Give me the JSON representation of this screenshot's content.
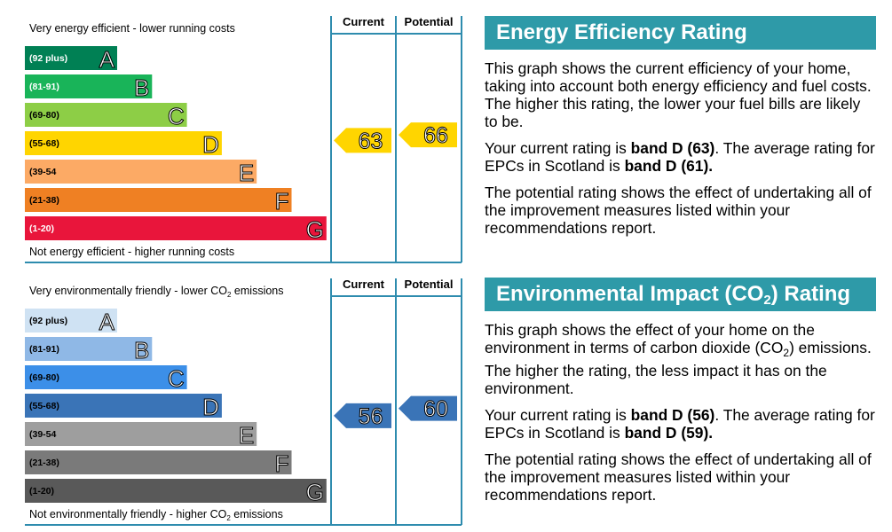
{
  "chart_data": [
    {
      "type": "bar",
      "top_label": "Very energy efficient - lower running costs",
      "bottom_label": "Not energy efficient - higher running costs",
      "columns": [
        "Current",
        "Potential"
      ],
      "bands": [
        {
          "letter": "A",
          "range": "(92 plus)",
          "color": "#008054",
          "text_color": "#ffffff"
        },
        {
          "letter": "B",
          "range": "(81-91)",
          "color": "#19b459",
          "text_color": "#ffffff"
        },
        {
          "letter": "C",
          "range": "(69-80)",
          "color": "#8dce46",
          "text_color": "#000000"
        },
        {
          "letter": "D",
          "range": "(55-68)",
          "color": "#ffd500",
          "text_color": "#000000"
        },
        {
          "letter": "E",
          "range": "(39-54",
          "color": "#fcaa65",
          "text_color": "#000000"
        },
        {
          "letter": "F",
          "range": "(21-38)",
          "color": "#ef8023",
          "text_color": "#000000"
        },
        {
          "letter": "G",
          "range": "(1-20)",
          "color": "#e9153b",
          "text_color": "#ffffff"
        }
      ],
      "current": {
        "value": 63,
        "color": "#ffd500"
      },
      "potential": {
        "value": 66,
        "color": "#ffd500"
      }
    },
    {
      "type": "bar",
      "top_label_pre": "Very environmentally friendly - lower CO",
      "top_label_sub": "2",
      "top_label_post": " emissions",
      "bottom_label_pre": "Not environmentally friendly - higher CO",
      "bottom_label_sub": "2",
      "bottom_label_post": " emissions",
      "columns": [
        "Current",
        "Potential"
      ],
      "bands": [
        {
          "letter": "A",
          "range": "(92 plus)",
          "color": "#cfe2f3",
          "text_color": "#000000"
        },
        {
          "letter": "B",
          "range": "(81-91)",
          "color": "#8fb8e6",
          "text_color": "#000000"
        },
        {
          "letter": "C",
          "range": "(69-80)",
          "color": "#3c8fe8",
          "text_color": "#000000"
        },
        {
          "letter": "D",
          "range": "(55-68)",
          "color": "#3a74b7",
          "text_color": "#000000"
        },
        {
          "letter": "E",
          "range": "(39-54",
          "color": "#9e9e9e",
          "text_color": "#000000"
        },
        {
          "letter": "F",
          "range": "(21-38)",
          "color": "#7a7a7a",
          "text_color": "#000000"
        },
        {
          "letter": "G",
          "range": "(1-20)",
          "color": "#595959",
          "text_color": "#000000"
        }
      ],
      "current": {
        "value": 56,
        "color": "#3a74b7"
      },
      "potential": {
        "value": 60,
        "color": "#3a74b7"
      }
    }
  ],
  "panels": {
    "energy": {
      "title": "Energy Efficiency Rating",
      "p1": "This graph shows the current efficiency of your home, taking into account both energy efficiency and fuel costs. The higher this rating, the lower your fuel bills are likely to be.",
      "p2_pre": "Your current rating is ",
      "p2_bold1": "band D (63)",
      "p2_mid": ". The average rating for EPCs in Scotland is ",
      "p2_bold2": "band D (61).",
      "p3": "The potential rating shows the effect of undertaking all of the improvement measures listed within your recommendations report."
    },
    "environment": {
      "title_pre": "Environmental Impact (CO",
      "title_sub": "2",
      "title_post": ") Rating",
      "p1_pre": "This graph shows the effect of your home on the environment in terms of carbon dioxide (CO",
      "p1_sub": "2",
      "p1_post": ") emissions. The higher the rating, the less impact it has on the environment.",
      "p2_pre": "Your current rating is ",
      "p2_bold1": "band D (56)",
      "p2_mid": ". The average rating for EPCs in Scotland is ",
      "p2_bold2": "band D (59).",
      "p3": "The potential rating shows the effect of undertaking all of the improvement measures listed within your recommendations report."
    }
  }
}
